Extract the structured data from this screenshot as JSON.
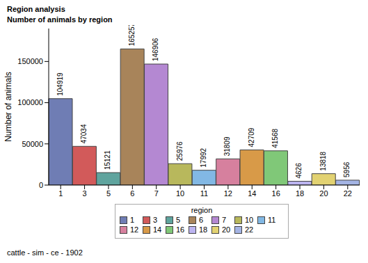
{
  "chart_data": {
    "type": "bar",
    "title": "Region analysis",
    "subtitle": "Number of animals by region",
    "ylabel": "Number of animals",
    "categories": [
      "1",
      "3",
      "5",
      "6",
      "7",
      "10",
      "11",
      "12",
      "14",
      "16",
      "18",
      "20",
      "22"
    ],
    "values": [
      104919,
      47034,
      15121,
      165257,
      146906,
      25976,
      17992,
      31809,
      42709,
      41568,
      4626,
      13818,
      5956
    ],
    "colors": [
      "#6f7db4",
      "#d25a5a",
      "#5fa49e",
      "#a8845a",
      "#b488d2",
      "#b8b85c",
      "#82b8e4",
      "#d6809e",
      "#d89a48",
      "#80c878",
      "#bcb4f0",
      "#e2d272",
      "#a4b4e4"
    ],
    "ylim": [
      0,
      190000
    ],
    "yticks": [
      0,
      50000,
      100000,
      150000
    ],
    "data_labels": true,
    "legend": "bottom",
    "legend_title": "region",
    "footnote": "cattle - sim - ce - 1902"
  }
}
